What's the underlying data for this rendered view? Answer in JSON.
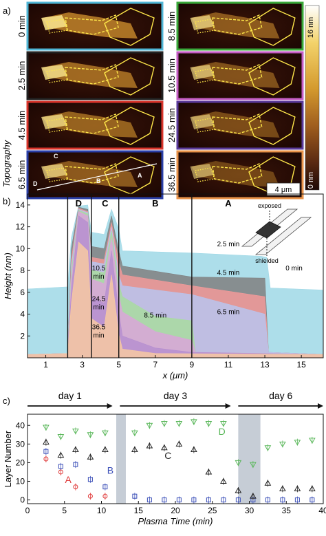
{
  "panel_a": {
    "label": "a)",
    "ylabel": "Topography",
    "colorbar": {
      "top": "16 nm",
      "bottom": "0 nm",
      "colors": [
        "#ffffff",
        "#f3d36b",
        "#d49a2e",
        "#a05e1e",
        "#5a2a12",
        "#1d0804"
      ]
    },
    "scalebar": "4 μm",
    "frames": [
      {
        "time": "0 min",
        "border": "#4fb6d6"
      },
      {
        "time": "2.5 min",
        "border": "#222222"
      },
      {
        "time": "4.5 min",
        "border": "#d9342b"
      },
      {
        "time": "6.5 min",
        "border": "#2a3fa8"
      },
      {
        "time": "8.5 min",
        "border": "#3aa83a"
      },
      {
        "time": "10.5 min",
        "border": "#c45cc4"
      },
      {
        "time": "24.5 min",
        "border": "#5a3a9a"
      },
      {
        "time": "36.5 min",
        "border": "#e8934a"
      }
    ],
    "markers": {
      "A": "A",
      "B": "B",
      "C": "C",
      "D": "D"
    }
  },
  "panel_b": {
    "label": "b)",
    "inset": {
      "exposed": "exposed",
      "shielded": "shielded"
    },
    "curve_labels": [
      "2.5 min",
      "0 min",
      "4.5 min",
      "6.5 min",
      "8.5 min",
      "10.5 min",
      "24.5 min",
      "36.5 min"
    ],
    "region_labels": [
      "D",
      "C",
      "B",
      "A"
    ]
  },
  "panel_c": {
    "label": "c)",
    "day_labels": [
      "day 1",
      "day 3",
      "day 6"
    ],
    "series_labels": {
      "A": "A",
      "B": "B",
      "C": "C",
      "D": "D"
    }
  },
  "chart_data": [
    {
      "type": "area",
      "xlabel": "x (μm)",
      "ylabel": "Height (nm)",
      "xlim": [
        0,
        16.2
      ],
      "ylim": [
        0,
        15
      ],
      "xticks": [
        1,
        3,
        5,
        7,
        9,
        11,
        13,
        15
      ],
      "yticks": [
        2,
        4,
        6,
        8,
        10,
        12,
        14
      ],
      "region_boundaries_um": [
        2.2,
        3.5,
        5.0,
        9.0
      ],
      "series": [
        {
          "name": "0 min",
          "color": "#9fd8e6",
          "x": [
            0,
            2.2,
            2.4,
            2.8,
            3.3,
            3.5,
            4.2,
            4.6,
            5.0,
            5.2,
            9.0,
            12.8,
            13.1,
            13.3,
            16.2
          ],
          "y": [
            6.3,
            6.5,
            11.0,
            13.9,
            14.0,
            11.5,
            11.3,
            13.6,
            11.8,
            9.8,
            9.6,
            9.3,
            9.2,
            6.4,
            6.2
          ]
        },
        {
          "name": "2.5 min",
          "color": "#808080",
          "x": [
            0,
            2.2,
            2.4,
            2.8,
            3.3,
            3.5,
            4.2,
            4.6,
            5.0,
            5.2,
            9.0,
            13.0,
            13.2,
            16.2
          ],
          "y": [
            0.3,
            0.4,
            10.0,
            13.8,
            13.6,
            10.2,
            10.0,
            13.0,
            9.8,
            8.4,
            7.4,
            7.3,
            0.5,
            0.3
          ]
        },
        {
          "name": "4.5 min",
          "color": "#f29a9a",
          "x": [
            0,
            2.2,
            2.4,
            2.8,
            3.3,
            3.5,
            4.2,
            4.6,
            5.0,
            5.2,
            9.0,
            13.0,
            13.2,
            16.2
          ],
          "y": [
            0.3,
            0.4,
            9.0,
            13.7,
            13.4,
            9.2,
            9.0,
            12.4,
            8.8,
            7.6,
            6.6,
            5.6,
            0.5,
            0.3
          ]
        },
        {
          "name": "6.5 min",
          "color": "#b8c4ee",
          "x": [
            0,
            2.2,
            2.4,
            2.8,
            3.3,
            3.5,
            4.2,
            4.6,
            5.0,
            5.2,
            9.0,
            13.0,
            13.2,
            16.2
          ],
          "y": [
            0.3,
            0.4,
            8.4,
            13.6,
            13.3,
            8.8,
            8.6,
            12.0,
            7.6,
            6.6,
            5.8,
            4.0,
            0.5,
            0.3
          ]
        },
        {
          "name": "8.5 min",
          "color": "#a8dca0",
          "x": [
            0,
            2.2,
            2.4,
            2.8,
            3.3,
            3.5,
            4.2,
            4.6,
            5.0,
            5.2,
            7.0,
            9.0,
            9.2,
            16.2
          ],
          "y": [
            0.3,
            0.4,
            7.8,
            13.5,
            13.2,
            8.0,
            7.8,
            11.6,
            6.8,
            5.6,
            3.8,
            3.4,
            0.5,
            0.3
          ]
        },
        {
          "name": "10.5 min",
          "color": "#d9a6d9",
          "x": [
            0,
            2.2,
            2.4,
            2.8,
            3.3,
            3.5,
            4.2,
            4.6,
            5.0,
            5.2,
            7.0,
            9.0,
            9.2,
            16.2
          ],
          "y": [
            0.3,
            0.4,
            7.2,
            13.4,
            13.0,
            7.2,
            6.8,
            11.0,
            5.8,
            4.2,
            2.4,
            1.6,
            0.5,
            0.3
          ]
        },
        {
          "name": "24.5 min",
          "color": "#b68fd0",
          "x": [
            0,
            2.2,
            2.4,
            2.8,
            3.3,
            3.5,
            4.2,
            4.6,
            5.0,
            5.2,
            7.0,
            9.0,
            16.2
          ],
          "y": [
            0.3,
            0.4,
            6.2,
            13.0,
            12.4,
            5.6,
            5.0,
            9.8,
            4.2,
            2.0,
            0.9,
            0.5,
            0.3
          ]
        },
        {
          "name": "36.5 min",
          "color": "#f7c9a2",
          "x": [
            0,
            2.2,
            2.4,
            2.8,
            3.3,
            3.5,
            4.2,
            4.6,
            5.0,
            5.2,
            7.0,
            16.2
          ],
          "y": [
            0.3,
            0.4,
            5.0,
            10.6,
            9.8,
            3.6,
            2.8,
            7.6,
            2.2,
            0.8,
            0.4,
            0.3
          ]
        }
      ]
    },
    {
      "type": "scatter",
      "xlabel": "Plasma Time (min)",
      "ylabel": "Layer Number",
      "xlim": [
        0,
        40
      ],
      "ylim": [
        -2,
        46
      ],
      "xticks": [
        0,
        5,
        10,
        15,
        20,
        25,
        30,
        35,
        40
      ],
      "yticks": [
        0,
        10,
        20,
        30,
        40
      ],
      "shaded_x_ranges": [
        [
          12.0,
          13.3
        ],
        [
          28.5,
          31.5
        ]
      ],
      "day_ranges": [
        [
          0,
          11.5
        ],
        [
          12.5,
          27.5
        ],
        [
          28.5,
          40
        ]
      ],
      "series": [
        {
          "name": "A",
          "marker": "circle",
          "color": "#e03a3a",
          "x": [
            2.5,
            4.5,
            6.5,
            8.5,
            10.5
          ],
          "y": [
            22,
            15,
            7,
            2,
            2
          ]
        },
        {
          "name": "B",
          "marker": "square",
          "color": "#3b4fb8",
          "x": [
            2.5,
            4.5,
            6.5,
            8.5,
            10.5,
            14.5,
            16.5,
            18.5,
            20.5,
            22.5,
            24.5,
            26.5,
            28.5,
            30.5,
            32.5,
            34.5,
            36.5,
            38.5
          ],
          "y": [
            26,
            18,
            19,
            11,
            7,
            2,
            0,
            0,
            0,
            0,
            0,
            0,
            0,
            0,
            0,
            0,
            0,
            0
          ]
        },
        {
          "name": "C",
          "marker": "triangle-up",
          "color": "#222222",
          "x": [
            2.5,
            4.5,
            6.5,
            8.5,
            10.5,
            14.5,
            16.5,
            18.5,
            20.5,
            22.5,
            24.5,
            26.5,
            28.5,
            30.5,
            32.5,
            34.5,
            36.5,
            38.5
          ],
          "y": [
            31,
            24,
            27,
            23,
            27,
            27,
            29,
            28,
            30,
            27,
            15,
            10,
            5,
            2,
            9,
            6,
            6,
            6
          ]
        },
        {
          "name": "D",
          "marker": "triangle-down",
          "color": "#5cb85c",
          "x": [
            2.5,
            4.5,
            6.5,
            8.5,
            10.5,
            14.5,
            16.5,
            18.5,
            20.5,
            22.5,
            24.5,
            26.5,
            28.5,
            30.5,
            32.5,
            34.5,
            36.5,
            38.5
          ],
          "y": [
            39,
            34,
            37,
            35,
            36,
            36,
            40,
            41,
            41,
            42,
            41,
            41,
            20,
            19,
            28,
            30,
            31,
            32
          ]
        }
      ]
    }
  ]
}
